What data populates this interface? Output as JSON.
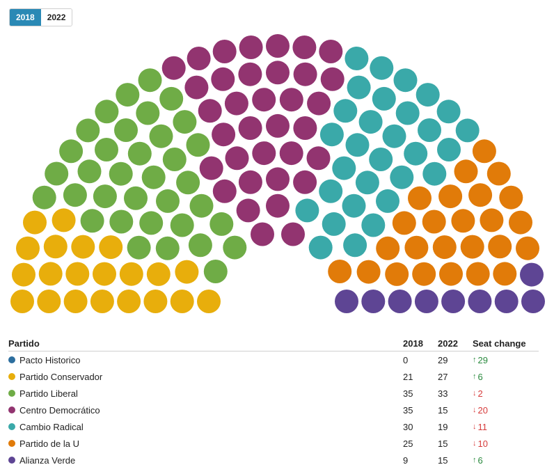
{
  "year_toggle": {
    "options": [
      "2018",
      "2022"
    ],
    "selected": "2018"
  },
  "table": {
    "headers": {
      "party": "Partido",
      "y2018": "2018",
      "y2022": "2022",
      "change": "Seat change"
    }
  },
  "chart_data": {
    "type": "parliament",
    "year_shown": "2018",
    "parties": [
      {
        "name": "Pacto Historico",
        "color": "#2c6e9e",
        "seats_2018": 0,
        "seats_2022": 29,
        "change": 29,
        "direction": "up"
      },
      {
        "name": "Partido Conservador",
        "color": "#e8ae0c",
        "seats_2018": 21,
        "seats_2022": 27,
        "change": 6,
        "direction": "up"
      },
      {
        "name": "Partido Liberal",
        "color": "#6fac46",
        "seats_2018": 35,
        "seats_2022": 33,
        "change": 2,
        "direction": "down"
      },
      {
        "name": "Centro Democrático",
        "color": "#923470",
        "seats_2018": 35,
        "seats_2022": 15,
        "change": 20,
        "direction": "down"
      },
      {
        "name": "Cambio Radical",
        "color": "#3aa9a9",
        "seats_2018": 30,
        "seats_2022": 19,
        "change": 11,
        "direction": "down"
      },
      {
        "name": "Partido de la U",
        "color": "#e17b09",
        "seats_2018": 25,
        "seats_2022": 15,
        "change": 10,
        "direction": "down"
      },
      {
        "name": "Alianza Verde",
        "color": "#5e4594",
        "seats_2018": 9,
        "seats_2022": 15,
        "change": 6,
        "direction": "up"
      }
    ]
  }
}
